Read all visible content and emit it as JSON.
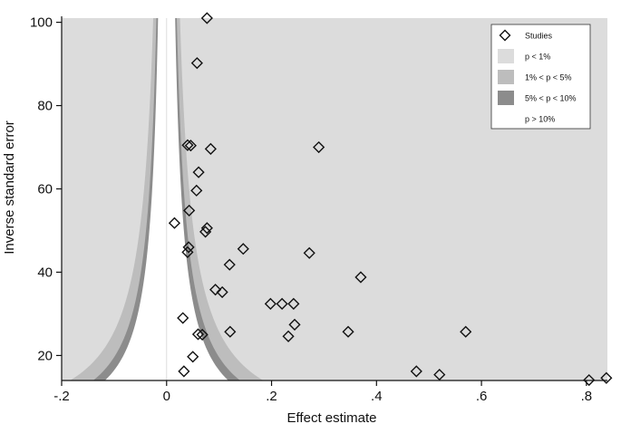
{
  "chart_data": {
    "type": "scatter",
    "title": "",
    "xlabel": "Effect estimate",
    "ylabel": "Inverse standard error",
    "xlim": [
      -0.2,
      0.84
    ],
    "ylim": [
      14,
      101
    ],
    "x_ticks": [
      -0.2,
      0,
      0.2,
      0.4,
      0.6,
      0.8
    ],
    "x_tick_labels": [
      "-.2",
      "0",
      ".2",
      ".4",
      ".6",
      ".8"
    ],
    "y_ticks": [
      20,
      40,
      60,
      80,
      100
    ],
    "y_tick_labels": [
      "20",
      "40",
      "60",
      "80",
      "100"
    ],
    "grid": false,
    "legend": {
      "position": "top-right",
      "entries": [
        {
          "label": "Studies",
          "marker": "diamond"
        },
        {
          "label": "p < 1%",
          "color": "#dcdcdc"
        },
        {
          "label": "1% < p < 5%",
          "color": "#bdbdbd"
        },
        {
          "label": "5% < p < 10%",
          "color": "#8c8c8c"
        },
        {
          "label": "p > 10%",
          "color": "#ffffff"
        }
      ]
    },
    "contours": {
      "z_values": [
        1.645,
        1.96,
        2.576
      ],
      "colors": {
        "outer": "#dcdcdc",
        "p1_5": "#bdbdbd",
        "p5_10": "#8c8c8c",
        "inner": "#ffffff"
      }
    },
    "series": [
      {
        "name": "Studies",
        "points": [
          {
            "x": 0.077,
            "y": 101
          },
          {
            "x": 0.058,
            "y": 90.2
          },
          {
            "x": 0.29,
            "y": 70
          },
          {
            "x": 0.04,
            "y": 70.5
          },
          {
            "x": 0.046,
            "y": 70.4
          },
          {
            "x": 0.084,
            "y": 69.6
          },
          {
            "x": 0.061,
            "y": 64
          },
          {
            "x": 0.057,
            "y": 59.6
          },
          {
            "x": 0.043,
            "y": 54.8
          },
          {
            "x": 0.015,
            "y": 51.8
          },
          {
            "x": 0.077,
            "y": 50.6
          },
          {
            "x": 0.074,
            "y": 49.7
          },
          {
            "x": 0.042,
            "y": 46
          },
          {
            "x": 0.04,
            "y": 44.8
          },
          {
            "x": 0.146,
            "y": 45.6
          },
          {
            "x": 0.272,
            "y": 44.6
          },
          {
            "x": 0.12,
            "y": 41.8
          },
          {
            "x": 0.37,
            "y": 38.8
          },
          {
            "x": 0.093,
            "y": 35.8
          },
          {
            "x": 0.106,
            "y": 35.2
          },
          {
            "x": 0.198,
            "y": 32.4
          },
          {
            "x": 0.22,
            "y": 32.4
          },
          {
            "x": 0.242,
            "y": 32.4
          },
          {
            "x": 0.031,
            "y": 29
          },
          {
            "x": 0.244,
            "y": 27.4
          },
          {
            "x": 0.121,
            "y": 25.7
          },
          {
            "x": 0.346,
            "y": 25.7
          },
          {
            "x": 0.57,
            "y": 25.7
          },
          {
            "x": 0.06,
            "y": 25.1
          },
          {
            "x": 0.068,
            "y": 25
          },
          {
            "x": 0.232,
            "y": 24.6
          },
          {
            "x": 0.05,
            "y": 19.7
          },
          {
            "x": 0.033,
            "y": 16.2
          },
          {
            "x": 0.476,
            "y": 16.2
          },
          {
            "x": 0.52,
            "y": 15.4
          },
          {
            "x": 0.805,
            "y": 14.1
          },
          {
            "x": 0.838,
            "y": 14.6
          }
        ]
      }
    ]
  }
}
